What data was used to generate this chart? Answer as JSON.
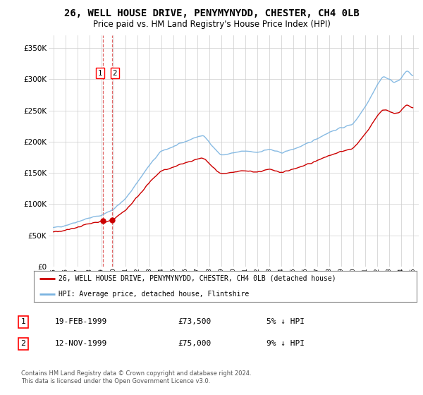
{
  "title": "26, WELL HOUSE DRIVE, PENYMYNYDD, CHESTER, CH4 0LB",
  "subtitle": "Price paid vs. HM Land Registry's House Price Index (HPI)",
  "title_fontsize": 10,
  "subtitle_fontsize": 8.5,
  "ylim": [
    0,
    370000
  ],
  "yticks": [
    0,
    50000,
    100000,
    150000,
    200000,
    250000,
    300000,
    350000
  ],
  "ytick_labels": [
    "£0",
    "£50K",
    "£100K",
    "£150K",
    "£200K",
    "£250K",
    "£300K",
    "£350K"
  ],
  "sale1_date": 1999.12,
  "sale1_price": 73500,
  "sale2_date": 1999.88,
  "sale2_price": 75000,
  "hpi_color": "#7ab3e0",
  "price_color": "#cc0000",
  "vline_color": "#cc0000",
  "legend_label_price": "26, WELL HOUSE DRIVE, PENYMYNYDD, CHESTER, CH4 0LB (detached house)",
  "legend_label_hpi": "HPI: Average price, detached house, Flintshire",
  "table_rows": [
    [
      "1",
      "19-FEB-1999",
      "£73,500",
      "5% ↓ HPI"
    ],
    [
      "2",
      "12-NOV-1999",
      "£75,000",
      "9% ↓ HPI"
    ]
  ],
  "footnote": "Contains HM Land Registry data © Crown copyright and database right 2024.\nThis data is licensed under the Open Government Licence v3.0.",
  "background_color": "#ffffff",
  "grid_color": "#cccccc",
  "xlim_left": 1994.6,
  "xlim_right": 2025.5
}
